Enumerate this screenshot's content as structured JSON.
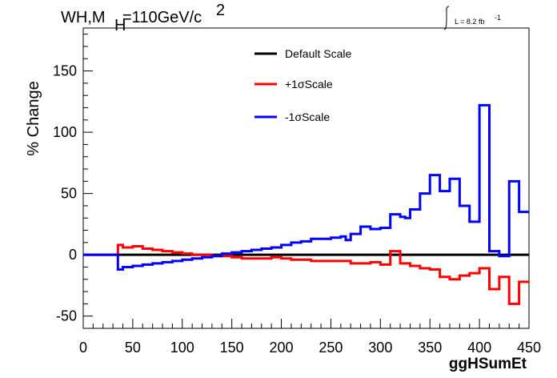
{
  "chart_data": {
    "type": "line",
    "title_main": "WH,M",
    "title_sub": "H",
    "title_mass": "=110GeV/c",
    "title_sup": "2",
    "lumi_label": "L = 8.2 fb",
    "lumi_sup": "-1",
    "xlabel": "ggHSumEt",
    "ylabel": "% Change",
    "xlim": [
      0,
      450
    ],
    "ylim": [
      -60,
      185
    ],
    "x_ticks": [
      0,
      50,
      100,
      150,
      200,
      250,
      300,
      350,
      400,
      450
    ],
    "y_ticks": [
      -50,
      0,
      50,
      100,
      150
    ],
    "bin_edges": [
      0,
      10,
      20,
      30,
      35,
      40,
      50,
      60,
      70,
      80,
      90,
      100,
      110,
      120,
      130,
      140,
      150,
      160,
      170,
      180,
      190,
      200,
      210,
      220,
      230,
      240,
      250,
      260,
      265,
      270,
      280,
      290,
      300,
      310,
      320,
      325,
      330,
      340,
      350,
      360,
      370,
      380,
      390,
      400,
      410,
      420,
      430,
      440,
      450
    ],
    "series": [
      {
        "name": "Default Scale",
        "color": "#000000",
        "values": [
          0,
          0,
          0,
          0,
          0,
          0,
          0,
          0,
          0,
          0,
          0,
          0,
          0,
          0,
          0,
          0,
          0,
          0,
          0,
          0,
          0,
          0,
          0,
          0,
          0,
          0,
          0,
          0,
          0,
          0,
          0,
          0,
          0,
          0,
          0,
          0,
          0,
          0,
          0,
          0,
          0,
          0,
          0,
          0,
          0,
          0,
          0,
          0
        ]
      },
      {
        "name": "+1σScale",
        "color": "#ff0000",
        "values": [
          0,
          0,
          0,
          0,
          8,
          6,
          7,
          5,
          4,
          3,
          2,
          1,
          0,
          0,
          -1,
          -1,
          -2,
          -3,
          -3,
          -3,
          -2,
          -3,
          -4,
          -4,
          -5,
          -5,
          -5,
          -5,
          -5,
          -7,
          -7,
          -6,
          -8,
          3,
          -7,
          -7,
          -9,
          -11,
          -12,
          -18,
          -20,
          -17,
          -15,
          -11,
          -28,
          -18,
          -40,
          -22
        ]
      },
      {
        "name": "-1σScale",
        "color": "#0000ff",
        "values": [
          0,
          0,
          0,
          0,
          -12,
          -10,
          -9,
          -8,
          -7,
          -6,
          -5,
          -4,
          -3,
          -2,
          -1,
          1,
          2,
          3,
          4,
          5,
          6,
          8,
          10,
          11,
          13,
          13,
          14,
          15,
          12,
          17,
          23,
          21,
          22,
          33,
          31,
          30,
          37,
          50,
          65,
          52,
          62,
          40,
          27,
          122,
          3,
          -1,
          60,
          35
        ]
      }
    ]
  }
}
